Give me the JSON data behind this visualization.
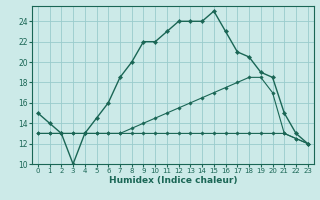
{
  "xlabel": "Humidex (Indice chaleur)",
  "background_color": "#cceae8",
  "grid_color": "#99cccc",
  "line_color": "#1a6655",
  "xlim": [
    -0.5,
    23.5
  ],
  "ylim": [
    10,
    25.5
  ],
  "xticks": [
    0,
    1,
    2,
    3,
    4,
    5,
    6,
    7,
    8,
    9,
    10,
    11,
    12,
    13,
    14,
    15,
    16,
    17,
    18,
    19,
    20,
    21,
    22,
    23
  ],
  "yticks": [
    10,
    12,
    14,
    16,
    18,
    20,
    22,
    24
  ],
  "series1": [
    15,
    14,
    13,
    10,
    13,
    14.5,
    16,
    18.5,
    20,
    22,
    22,
    23,
    24,
    24,
    24,
    25,
    23,
    21,
    20.5,
    19,
    18.5,
    15,
    13,
    12
  ],
  "series2": [
    13,
    13,
    13,
    13,
    13,
    13,
    13,
    13,
    13.5,
    14,
    14.5,
    15,
    15.5,
    16,
    16.5,
    17,
    17.5,
    18,
    18.5,
    18.5,
    17,
    13,
    12.5,
    12
  ],
  "series3": [
    13,
    13,
    13,
    13,
    13,
    13,
    13,
    13,
    13,
    13,
    13,
    13,
    13,
    13,
    13,
    13,
    13,
    13,
    13,
    13,
    13,
    13,
    12.5,
    12
  ]
}
